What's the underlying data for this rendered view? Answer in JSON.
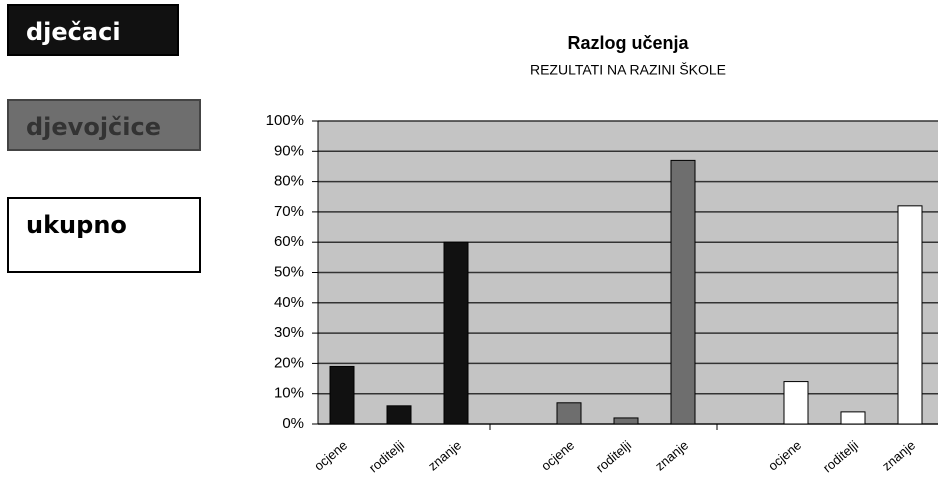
{
  "chart_data": {
    "type": "bar",
    "title": "Razlog učenja",
    "subtitle": "REZULTATI NA RAZINI ŠKOLE",
    "categories": [
      "ocjene",
      "roditelji",
      "znanje"
    ],
    "series": [
      {
        "name": "dječaci",
        "color": "#111111",
        "values": [
          19,
          6,
          60
        ]
      },
      {
        "name": "djevojčice",
        "color": "#6e6e6e",
        "values": [
          7,
          2,
          87
        ]
      },
      {
        "name": "ukupno",
        "color": "#ffffff",
        "values": [
          14,
          4,
          72
        ]
      }
    ],
    "ylim": [
      0,
      100
    ],
    "yticks": [
      {
        "value": 0,
        "label": "0%"
      },
      {
        "value": 10,
        "label": "10%"
      },
      {
        "value": 20,
        "label": "20%"
      },
      {
        "value": 30,
        "label": "30%"
      },
      {
        "value": 40,
        "label": "40%"
      },
      {
        "value": 50,
        "label": "50%"
      },
      {
        "value": 60,
        "label": "60%"
      },
      {
        "value": 70,
        "label": "70%"
      },
      {
        "value": 80,
        "label": "80%"
      },
      {
        "value": 90,
        "label": "90%"
      },
      {
        "value": 100,
        "label": "100%"
      }
    ],
    "grid": true
  }
}
